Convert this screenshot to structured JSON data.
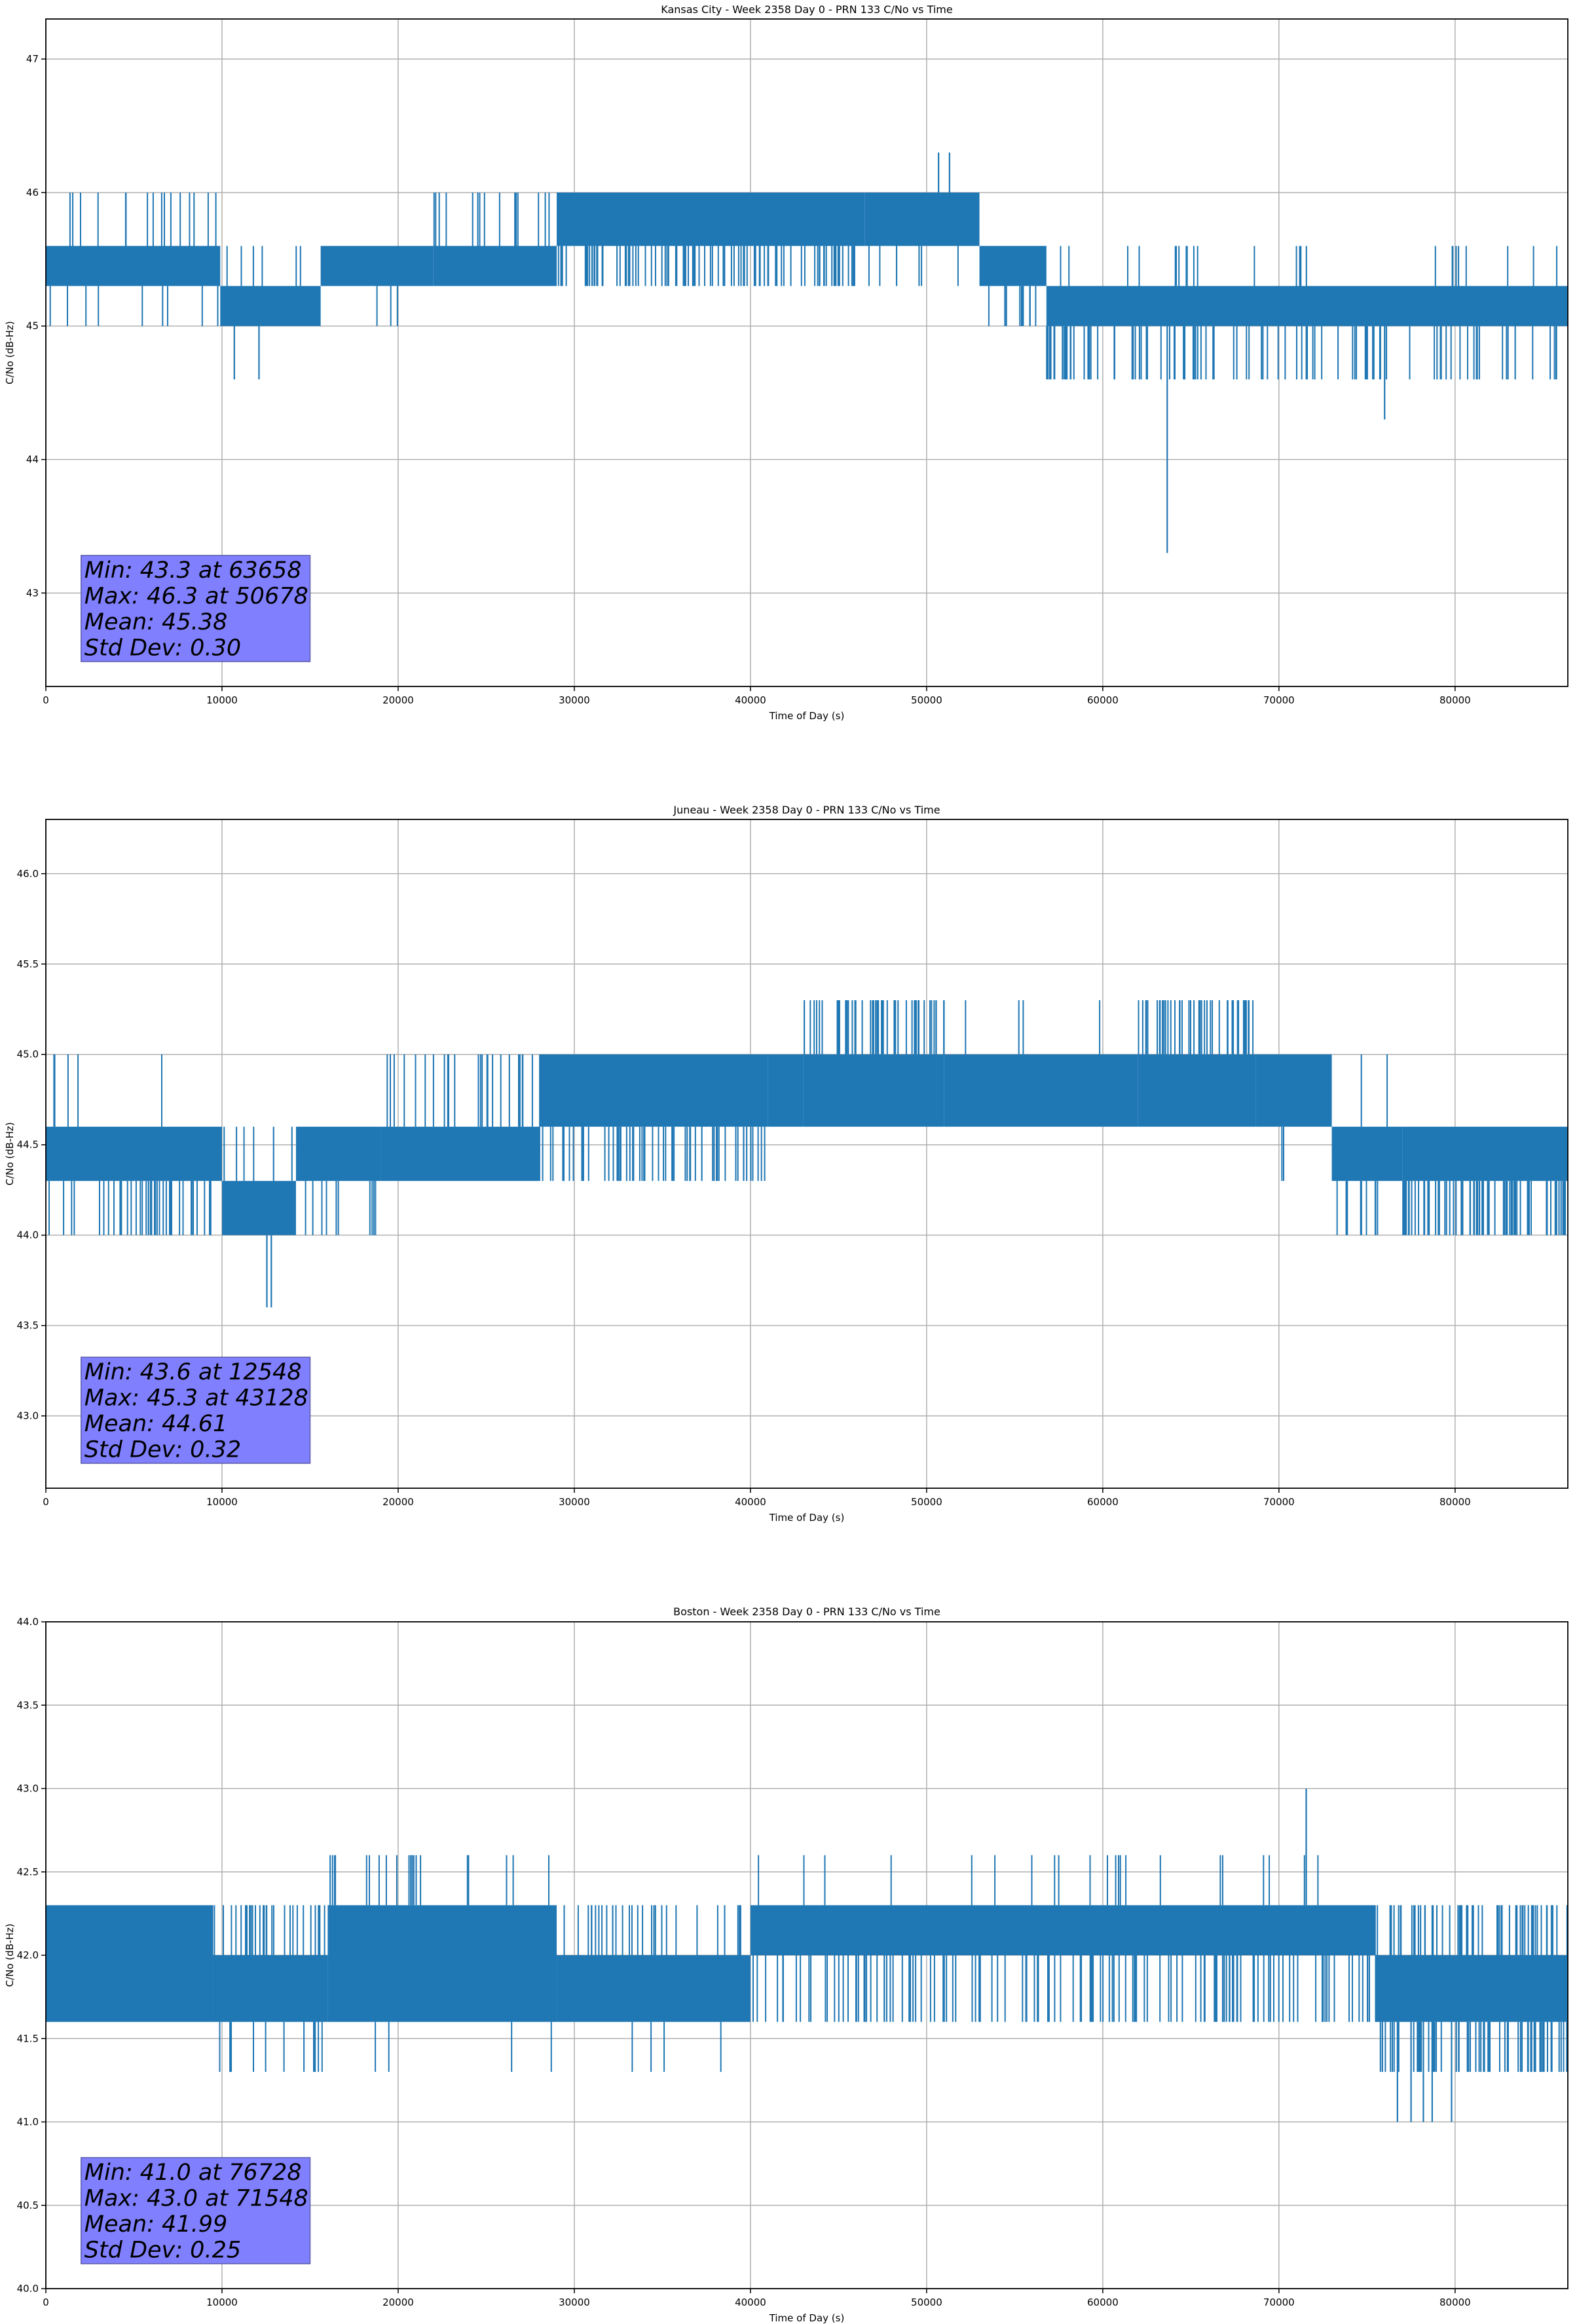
{
  "chart_data": [
    {
      "type": "line",
      "title": "Kansas City - Week 2358 Day 0 - PRN 133 C/No vs Time",
      "xlabel": "Time of Day (s)",
      "ylabel": "C/No (dB-Hz)",
      "xlim": [
        0,
        86400
      ],
      "ylim": [
        42.3,
        47.3
      ],
      "xticks": [
        0,
        10000,
        20000,
        30000,
        40000,
        50000,
        60000,
        70000,
        80000
      ],
      "yticks": [
        43,
        44,
        45,
        46,
        47
      ],
      "ytick_labels": [
        "43",
        "44",
        "45",
        "46",
        "47"
      ],
      "grid": true,
      "line_color": "#1f77b4",
      "segments": [
        {
          "t": [
            0,
            9900
          ],
          "core": [
            45.3,
            45.6
          ],
          "up": [
            46.0,
            0.15
          ],
          "down": [
            45.0,
            0.08
          ]
        },
        {
          "t": [
            9900,
            15600
          ],
          "core": [
            45.0,
            45.3
          ],
          "up": [
            45.6,
            0.1
          ],
          "down": null
        },
        {
          "t": [
            15600,
            22000
          ],
          "core": [
            45.3,
            45.6
          ],
          "up": null,
          "down": [
            45.0,
            0.05
          ]
        },
        {
          "t": [
            22000,
            29000
          ],
          "core": [
            45.3,
            45.6
          ],
          "up": [
            46.0,
            0.2
          ],
          "down": null
        },
        {
          "t": [
            29000,
            46500
          ],
          "core": [
            45.6,
            46.0
          ],
          "up": null,
          "down": [
            45.3,
            0.5
          ]
        },
        {
          "t": [
            46500,
            53000
          ],
          "core": [
            45.6,
            46.0
          ],
          "up": null,
          "down": [
            45.3,
            0.1
          ]
        },
        {
          "t": [
            53000,
            56800
          ],
          "core": [
            45.3,
            45.6
          ],
          "up": null,
          "down": [
            45.0,
            0.3
          ]
        },
        {
          "t": [
            56800,
            86400
          ],
          "core": [
            45.0,
            45.3
          ],
          "up": [
            45.6,
            0.08
          ],
          "down": [
            44.6,
            0.3
          ]
        }
      ],
      "spikes": [
        [
          63658,
          43.3
        ],
        [
          50678,
          46.3
        ],
        [
          51300,
          46.3
        ],
        [
          76000,
          44.3
        ],
        [
          10700,
          44.6
        ],
        [
          12100,
          44.6
        ]
      ],
      "stats": {
        "min": "Min: 43.3 at 63658",
        "max": "Max: 46.3 at 50678",
        "mean": "Mean: 45.38",
        "std": "Std Dev: 0.30"
      },
      "stats_box_color": "#8080ff"
    },
    {
      "type": "line",
      "title": "Juneau - Week 2358 Day 0 - PRN 133 C/No vs Time",
      "xlabel": "Time of Day (s)",
      "ylabel": "C/No (dB-Hz)",
      "xlim": [
        0,
        86400
      ],
      "ylim": [
        42.6,
        46.3
      ],
      "xticks": [
        0,
        10000,
        20000,
        30000,
        40000,
        50000,
        60000,
        70000,
        80000
      ],
      "yticks": [
        43.0,
        43.5,
        44.0,
        44.5,
        45.0,
        45.5,
        46.0
      ],
      "ytick_labels": [
        "43.0",
        "43.5",
        "44.0",
        "44.5",
        "45.0",
        "45.5",
        "46.0"
      ],
      "grid": true,
      "line_color": "#1f77b4",
      "segments": [
        {
          "t": [
            0,
            10000
          ],
          "core": [
            44.3,
            44.6
          ],
          "up": [
            45.0,
            0.04
          ],
          "down": [
            44.0,
            0.35
          ]
        },
        {
          "t": [
            10000,
            14200
          ],
          "core": [
            44.0,
            44.3
          ],
          "up": [
            44.6,
            0.15
          ],
          "down": null
        },
        {
          "t": [
            14200,
            19000
          ],
          "core": [
            44.3,
            44.6
          ],
          "up": null,
          "down": [
            44.0,
            0.2
          ]
        },
        {
          "t": [
            19000,
            28000
          ],
          "core": [
            44.3,
            44.6
          ],
          "up": [
            45.0,
            0.25
          ],
          "down": null
        },
        {
          "t": [
            28000,
            41000
          ],
          "core": [
            44.6,
            45.0
          ],
          "up": null,
          "down": [
            44.3,
            0.45
          ]
        },
        {
          "t": [
            41000,
            43000
          ],
          "core": [
            44.6,
            45.0
          ],
          "up": [
            45.3,
            0.02
          ],
          "down": null
        },
        {
          "t": [
            43000,
            51000
          ],
          "core": [
            44.6,
            45.0
          ],
          "up": [
            45.3,
            0.6
          ],
          "down": null
        },
        {
          "t": [
            51000,
            62000
          ],
          "core": [
            44.6,
            45.0
          ],
          "up": [
            45.3,
            0.03
          ],
          "down": null
        },
        {
          "t": [
            62000,
            68700
          ],
          "core": [
            44.6,
            45.0
          ],
          "up": [
            45.3,
            0.6
          ],
          "down": null
        },
        {
          "t": [
            68700,
            73000
          ],
          "core": [
            44.6,
            45.0
          ],
          "up": null,
          "down": [
            44.3,
            0.05
          ]
        },
        {
          "t": [
            73000,
            77000
          ],
          "core": [
            44.3,
            44.6
          ],
          "up": [
            45.0,
            0.04
          ],
          "down": [
            44.0,
            0.2
          ]
        },
        {
          "t": [
            77000,
            86400
          ],
          "core": [
            44.3,
            44.6
          ],
          "up": null,
          "down": [
            44.0,
            0.7
          ]
        }
      ],
      "spikes": [
        [
          12548,
          43.6
        ],
        [
          12800,
          43.6
        ],
        [
          500,
          45.0
        ]
      ],
      "stats": {
        "min": "Min: 43.6 at 12548",
        "max": "Max: 45.3 at 43128",
        "mean": "Mean: 44.61",
        "std": "Std Dev: 0.32"
      },
      "stats_box_color": "#8080ff"
    },
    {
      "type": "line",
      "title": "Boston - Week 2358 Day 0 - PRN 133 C/No vs Time",
      "xlabel": "Time of Day (s)",
      "ylabel": "C/No (dB-Hz)",
      "xlim": [
        0,
        86400
      ],
      "ylim": [
        40.0,
        44.0
      ],
      "xticks": [
        0,
        10000,
        20000,
        30000,
        40000,
        50000,
        60000,
        70000,
        80000
      ],
      "yticks": [
        40.0,
        40.5,
        41.0,
        41.5,
        42.0,
        42.5,
        43.0,
        43.5,
        44.0
      ],
      "ytick_labels": [
        "40.0",
        "40.5",
        "41.0",
        "41.5",
        "42.0",
        "42.5",
        "43.0",
        "43.5",
        "44.0"
      ],
      "grid": true,
      "line_color": "#1f77b4",
      "segments": [
        {
          "t": [
            0,
            9500
          ],
          "core": [
            41.6,
            42.3
          ],
          "up": null,
          "down": null
        },
        {
          "t": [
            9500,
            16000
          ],
          "core": [
            41.6,
            42.0
          ],
          "up": [
            42.3,
            0.4
          ],
          "down": [
            41.3,
            0.2
          ]
        },
        {
          "t": [
            16000,
            29000
          ],
          "core": [
            41.6,
            42.3
          ],
          "up": [
            42.6,
            0.15
          ],
          "down": [
            41.3,
            0.03
          ]
        },
        {
          "t": [
            29000,
            40000
          ],
          "core": [
            41.6,
            42.0
          ],
          "up": [
            42.3,
            0.25
          ],
          "down": [
            41.3,
            0.03
          ]
        },
        {
          "t": [
            40000,
            75500
          ],
          "core": [
            42.0,
            42.3
          ],
          "up": [
            42.6,
            0.06
          ],
          "down": [
            41.6,
            0.35
          ]
        },
        {
          "t": [
            75500,
            86400
          ],
          "core": [
            41.6,
            42.0
          ],
          "up": [
            42.3,
            0.5
          ],
          "down": [
            41.3,
            0.6
          ]
        }
      ],
      "spikes": [
        [
          71548,
          43.0
        ],
        [
          76728,
          41.0
        ],
        [
          77500,
          41.0
        ],
        [
          78200,
          41.0
        ],
        [
          78700,
          41.0
        ],
        [
          79800,
          41.0
        ]
      ],
      "stats": {
        "min": "Min: 41.0 at 76728",
        "max": "Max: 43.0 at 71548",
        "mean": "Mean: 41.99",
        "std": "Std Dev: 0.25"
      },
      "stats_box_color": "#8080ff"
    }
  ]
}
